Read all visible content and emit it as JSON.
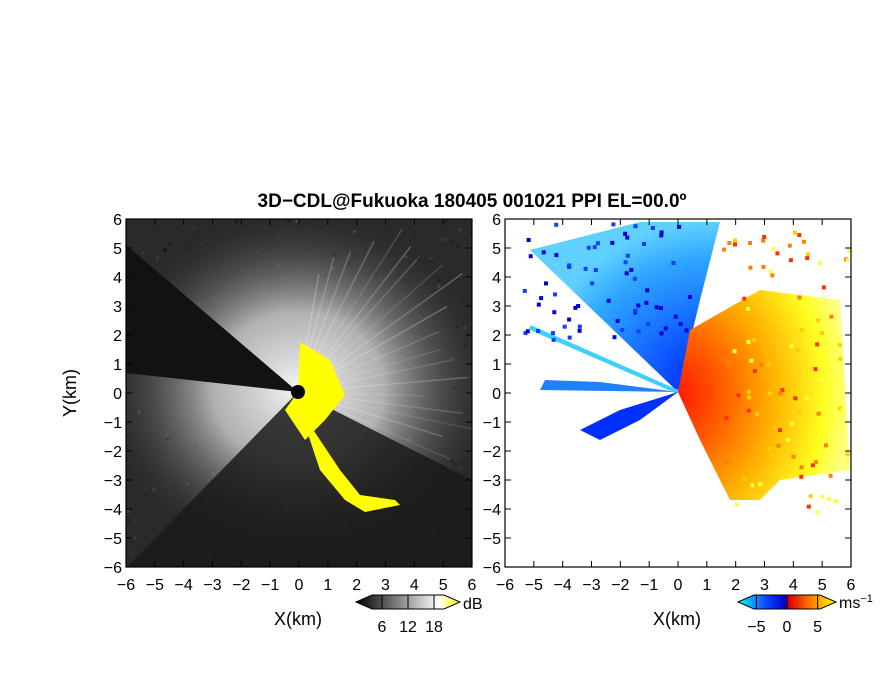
{
  "title": "3D−CDL@Fukuoka 180405 001021 PPI EL=00.0º",
  "chart_data": [
    {
      "type": "heatmap",
      "quantity": "reflectivity",
      "xlabel": "X(km)",
      "ylabel": "Y(km)",
      "xlim": [
        -6,
        6
      ],
      "ylim": [
        -6,
        6
      ],
      "xticks": [
        "−6",
        "−5",
        "−4",
        "−3",
        "−2",
        "−1",
        "0",
        "1",
        "2",
        "3",
        "4",
        "5",
        "6"
      ],
      "yticks": [
        "6",
        "5",
        "4",
        "3",
        "2",
        "1",
        "0",
        "−1",
        "−2",
        "−3",
        "−4",
        "−5",
        "−6"
      ],
      "colorbar": {
        "unit": "dB",
        "ticks": [
          "6",
          "12",
          "18"
        ],
        "tick_values": [
          6,
          12,
          18
        ],
        "range": [
          0,
          24
        ],
        "colors": [
          "#000000",
          "#ffffff",
          "#ffff00"
        ]
      }
    },
    {
      "type": "heatmap",
      "quantity": "doppler velocity",
      "xlabel": "X(km)",
      "ylabel": "",
      "xlim": [
        -6,
        6
      ],
      "ylim": [
        -6,
        6
      ],
      "xticks": [
        "−6",
        "−5",
        "−4",
        "−3",
        "−2",
        "−1",
        "0",
        "1",
        "2",
        "3",
        "4",
        "5",
        "6"
      ],
      "yticks": [
        "6",
        "5",
        "4",
        "3",
        "2",
        "1",
        "0",
        "−1",
        "−2",
        "−3",
        "−4",
        "−5",
        "−6"
      ],
      "colorbar": {
        "unit": "ms",
        "unit_exp": "−1",
        "ticks": [
          "−5",
          "0",
          "5"
        ],
        "tick_values": [
          -5,
          0,
          5
        ],
        "range": [
          -8,
          8
        ],
        "colors": [
          "#00ffff",
          "#0000ff",
          "#ff0000",
          "#ffff00"
        ]
      }
    }
  ]
}
